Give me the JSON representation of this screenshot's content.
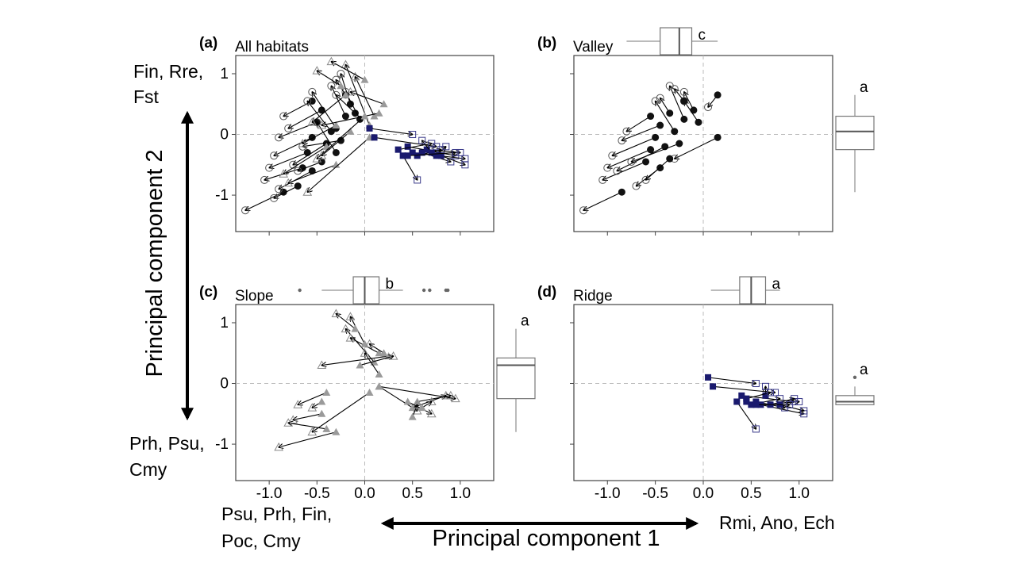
{
  "figure": {
    "y_axis_title": "Principal component 2",
    "x_axis_title": "Principal component 1",
    "y_top_label": [
      "Fin, Rre,",
      "Fst"
    ],
    "y_bottom_label": [
      "Prh, Psu,",
      "Cmy"
    ],
    "x_left_label": [
      "Psu, Prh, Fin,",
      "Poc, Cmy"
    ],
    "x_right_label": "Rmi, Ano, Ech"
  },
  "chart_data": [
    {
      "type": "scatter",
      "letter": "(a)",
      "title": "All habitats",
      "xlim": [
        -1.35,
        1.35
      ],
      "ylim": [
        -1.6,
        1.3
      ],
      "xticks": [
        -1.0,
        -0.5,
        0.0,
        0.5,
        1.0
      ],
      "yticks": [
        -1,
        0,
        1
      ],
      "xtick_labels": [],
      "ytick_labels": [
        "-1",
        "0",
        "1"
      ],
      "reference_lines": {
        "x": 0,
        "y": 0
      },
      "series": [
        {
          "habitat": "valley",
          "color": "#111111",
          "arrows": [
            [
              -0.55,
              0.55,
              -0.85,
              0.3
            ],
            [
              -0.45,
              0.4,
              -0.8,
              0.1
            ],
            [
              -0.5,
              0.2,
              -0.9,
              -0.05
            ],
            [
              -0.55,
              -0.05,
              -0.95,
              -0.35
            ],
            [
              -0.6,
              -0.3,
              -1.0,
              -0.55
            ],
            [
              -0.65,
              -0.55,
              -1.05,
              -0.75
            ],
            [
              -0.85,
              -0.95,
              -1.25,
              -1.25
            ],
            [
              -0.55,
              -0.6,
              -0.9,
              -0.9
            ],
            [
              -0.3,
              0.1,
              -0.55,
              0.7
            ],
            [
              -0.2,
              0.3,
              -0.35,
              0.8
            ],
            [
              -0.15,
              0.5,
              -0.25,
              1.0
            ],
            [
              -0.35,
              0.05,
              -0.6,
              0.55
            ],
            [
              -0.4,
              -0.15,
              -0.75,
              -0.5
            ],
            [
              -0.25,
              -0.1,
              -0.65,
              -0.2
            ],
            [
              -0.1,
              0.35,
              -0.3,
              0.65
            ],
            [
              -0.05,
              0.25,
              -0.2,
              0.7
            ],
            [
              -0.3,
              -0.3,
              -0.5,
              0.2
            ],
            [
              -0.45,
              -0.45,
              -0.7,
              -0.6
            ],
            [
              -0.7,
              -0.85,
              -0.95,
              -1.05
            ],
            [
              -0.2,
              0.65,
              -0.3,
              0.9
            ]
          ]
        },
        {
          "habitat": "slope",
          "color": "#9a9a9a",
          "arrows": [
            [
              -0.3,
              0.15,
              -0.65,
              -0.15
            ],
            [
              -0.4,
              -0.2,
              -0.85,
              -0.65
            ],
            [
              -0.3,
              -0.5,
              -0.8,
              -0.8
            ],
            [
              -0.15,
              0.05,
              -0.45,
              -0.35
            ],
            [
              0.05,
              -0.05,
              -0.6,
              -0.95
            ],
            [
              0.05,
              0.15,
              -0.2,
              1.15
            ],
            [
              0.1,
              0.3,
              -0.1,
              0.95
            ],
            [
              0.2,
              0.5,
              -0.15,
              0.7
            ],
            [
              0.15,
              0.35,
              -0.45,
              0.15
            ],
            [
              -0.2,
              0.65,
              -0.55,
              0.2
            ],
            [
              0.0,
              0.3,
              -0.5,
              -0.4
            ],
            [
              -0.25,
              0.8,
              -0.5,
              1.05
            ],
            [
              0.0,
              0.9,
              -0.35,
              1.2
            ]
          ]
        },
        {
          "habitat": "ridge",
          "color": "#1a1a6e",
          "arrows": [
            [
              0.05,
              0.1,
              0.5,
              0.0
            ],
            [
              0.1,
              -0.05,
              0.75,
              -0.2
            ],
            [
              0.45,
              -0.2,
              0.95,
              -0.35
            ],
            [
              0.5,
              -0.3,
              1.05,
              -0.4
            ],
            [
              0.55,
              -0.35,
              0.8,
              -0.25
            ],
            [
              0.6,
              -0.3,
              0.9,
              -0.45
            ],
            [
              0.65,
              -0.25,
              1.0,
              -0.3
            ],
            [
              0.7,
              -0.3,
              0.6,
              -0.1
            ],
            [
              0.75,
              -0.35,
              0.85,
              -0.2
            ],
            [
              0.4,
              -0.35,
              0.55,
              -0.75
            ],
            [
              0.8,
              -0.35,
              1.05,
              -0.5
            ],
            [
              0.35,
              -0.25,
              0.7,
              -0.15
            ],
            [
              0.45,
              -0.35,
              0.95,
              -0.3
            ]
          ]
        }
      ]
    },
    {
      "type": "scatter",
      "letter": "(b)",
      "title": "Valley",
      "xlim": [
        -1.35,
        1.35
      ],
      "ylim": [
        -1.6,
        1.3
      ],
      "xticks": [
        -1.0,
        -0.5,
        0.0,
        0.5,
        1.0
      ],
      "yticks": [
        -1,
        0,
        1
      ],
      "xtick_labels": [],
      "ytick_labels": [],
      "reference_lines": {
        "x": 0,
        "y": 0
      },
      "series": [
        {
          "habitat": "valley",
          "color": "#111111",
          "arrows": [
            [
              -0.55,
              0.3,
              -0.8,
              0.05
            ],
            [
              -0.45,
              0.15,
              -0.85,
              -0.1
            ],
            [
              -0.5,
              -0.05,
              -0.95,
              -0.35
            ],
            [
              -0.55,
              -0.25,
              -1.0,
              -0.55
            ],
            [
              -0.6,
              -0.45,
              -1.05,
              -0.75
            ],
            [
              -0.85,
              -0.95,
              -1.25,
              -1.25
            ],
            [
              -0.4,
              -0.2,
              -0.9,
              -0.6
            ],
            [
              -0.3,
              0.05,
              -0.5,
              0.55
            ],
            [
              -0.2,
              0.25,
              -0.35,
              0.8
            ],
            [
              -0.1,
              0.4,
              -0.2,
              0.7
            ],
            [
              -0.35,
              0.35,
              -0.45,
              0.6
            ],
            [
              -0.05,
              0.2,
              -0.2,
              0.55
            ],
            [
              0.15,
              0.65,
              0.05,
              0.45
            ],
            [
              -0.25,
              -0.15,
              -0.75,
              -0.45
            ],
            [
              -0.45,
              -0.55,
              -0.7,
              -0.85
            ],
            [
              0.15,
              -0.05,
              -0.3,
              -0.4
            ],
            [
              -0.2,
              0.55,
              -0.3,
              0.75
            ],
            [
              -0.35,
              -0.4,
              -0.6,
              -0.75
            ]
          ]
        }
      ]
    },
    {
      "type": "scatter",
      "letter": "(c)",
      "title": "Slope",
      "xlim": [
        -1.35,
        1.35
      ],
      "ylim": [
        -1.6,
        1.3
      ],
      "xticks": [
        -1.0,
        -0.5,
        0.0,
        0.5,
        1.0
      ],
      "yticks": [
        -1,
        0,
        1
      ],
      "xtick_labels": [
        "-1.0",
        "-0.5",
        "0.0",
        "0.5",
        "1.0"
      ],
      "ytick_labels": [
        "-1",
        "0",
        "1"
      ],
      "reference_lines": {
        "x": 0,
        "y": 0
      },
      "series": [
        {
          "habitat": "slope",
          "color": "#9a9a9a",
          "arrows": [
            [
              -0.4,
              -0.15,
              -0.7,
              -0.35
            ],
            [
              -0.45,
              -0.5,
              -0.75,
              -0.6
            ],
            [
              -0.4,
              -0.75,
              -0.8,
              -0.65
            ],
            [
              -0.3,
              -0.8,
              -0.9,
              -1.05
            ],
            [
              -0.45,
              -0.3,
              -0.55,
              -0.4
            ],
            [
              0.05,
              -0.15,
              -0.55,
              -0.8
            ],
            [
              0.1,
              0.35,
              -0.2,
              0.9
            ],
            [
              0.15,
              0.5,
              -0.15,
              0.75
            ],
            [
              0.25,
              0.45,
              -0.45,
              0.3
            ],
            [
              0.0,
              0.65,
              -0.15,
              1.1
            ],
            [
              -0.1,
              0.9,
              -0.3,
              1.15
            ],
            [
              0.15,
              0.15,
              0.0,
              0.5
            ],
            [
              0.15,
              -0.05,
              0.55,
              -0.45
            ],
            [
              0.5,
              -0.4,
              0.85,
              -0.2
            ],
            [
              0.55,
              -0.3,
              0.9,
              -0.2
            ],
            [
              0.15,
              -0.05,
              0.95,
              -0.25
            ],
            [
              0.5,
              -0.55,
              0.55,
              -0.35
            ],
            [
              0.45,
              -0.3,
              0.7,
              -0.5
            ],
            [
              0.6,
              -0.4,
              0.7,
              -0.3
            ],
            [
              -0.05,
              0.3,
              0.3,
              0.45
            ],
            [
              0.2,
              0.5,
              0.05,
              0.65
            ]
          ]
        }
      ]
    },
    {
      "type": "scatter",
      "letter": "(d)",
      "title": "Ridge",
      "xlim": [
        -1.35,
        1.35
      ],
      "ylim": [
        -1.6,
        1.3
      ],
      "xticks": [
        -1.0,
        -0.5,
        0.0,
        0.5,
        1.0
      ],
      "yticks": [
        -1,
        0,
        1
      ],
      "xtick_labels": [
        "-1.0",
        "-0.5",
        "0.0",
        "0.5",
        "1.0"
      ],
      "ytick_labels": [],
      "reference_lines": {
        "x": 0,
        "y": 0
      },
      "series": [
        {
          "habitat": "ridge",
          "color": "#1a1a6e",
          "arrows": [
            [
              0.05,
              0.1,
              0.55,
              0.0
            ],
            [
              0.1,
              -0.05,
              0.75,
              -0.15
            ],
            [
              0.4,
              -0.2,
              0.95,
              -0.3
            ],
            [
              0.45,
              -0.3,
              1.05,
              -0.5
            ],
            [
              0.5,
              -0.35,
              0.8,
              -0.25
            ],
            [
              0.55,
              -0.3,
              0.85,
              -0.4
            ],
            [
              0.6,
              -0.35,
              1.0,
              -0.3
            ],
            [
              0.65,
              -0.2,
              0.65,
              -0.05
            ],
            [
              0.7,
              -0.35,
              0.95,
              -0.25
            ],
            [
              0.35,
              -0.3,
              0.55,
              -0.75
            ],
            [
              0.8,
              -0.35,
              1.05,
              -0.45
            ],
            [
              0.45,
              -0.25,
              0.7,
              -0.15
            ],
            [
              0.55,
              -0.35,
              0.9,
              -0.35
            ]
          ]
        }
      ]
    }
  ],
  "boxplots": [
    {
      "panel": "b",
      "orientation": "horizontal",
      "letter": "c",
      "q1": -0.45,
      "median": -0.25,
      "q3": -0.12,
      "low": -0.8,
      "high": 0.15,
      "outliers": []
    },
    {
      "panel": "b",
      "orientation": "vertical",
      "letter": "a",
      "q1": -0.25,
      "median": 0.05,
      "q3": 0.3,
      "low": -0.95,
      "high": 0.65,
      "outliers": []
    },
    {
      "panel": "c",
      "orientation": "horizontal",
      "letter": "b",
      "q1": -0.12,
      "median": 0.0,
      "q3": 0.15,
      "low": -0.45,
      "high": 0.4,
      "outliers": [
        -0.68,
        0.62,
        0.68,
        0.85,
        0.87
      ]
    },
    {
      "panel": "c",
      "orientation": "vertical",
      "letter": "a",
      "q1": -0.25,
      "median": 0.3,
      "q3": 0.42,
      "low": -0.8,
      "high": 0.9,
      "outliers": []
    },
    {
      "panel": "d",
      "orientation": "horizontal",
      "letter": "a",
      "q1": 0.38,
      "median": 0.5,
      "q3": 0.65,
      "low": 0.08,
      "high": 0.8,
      "outliers": []
    },
    {
      "panel": "d",
      "orientation": "vertical",
      "letter": "a",
      "q1": -0.35,
      "median": -0.3,
      "q3": -0.2,
      "low": -0.35,
      "high": -0.05,
      "outliers": [
        0.1
      ]
    }
  ]
}
